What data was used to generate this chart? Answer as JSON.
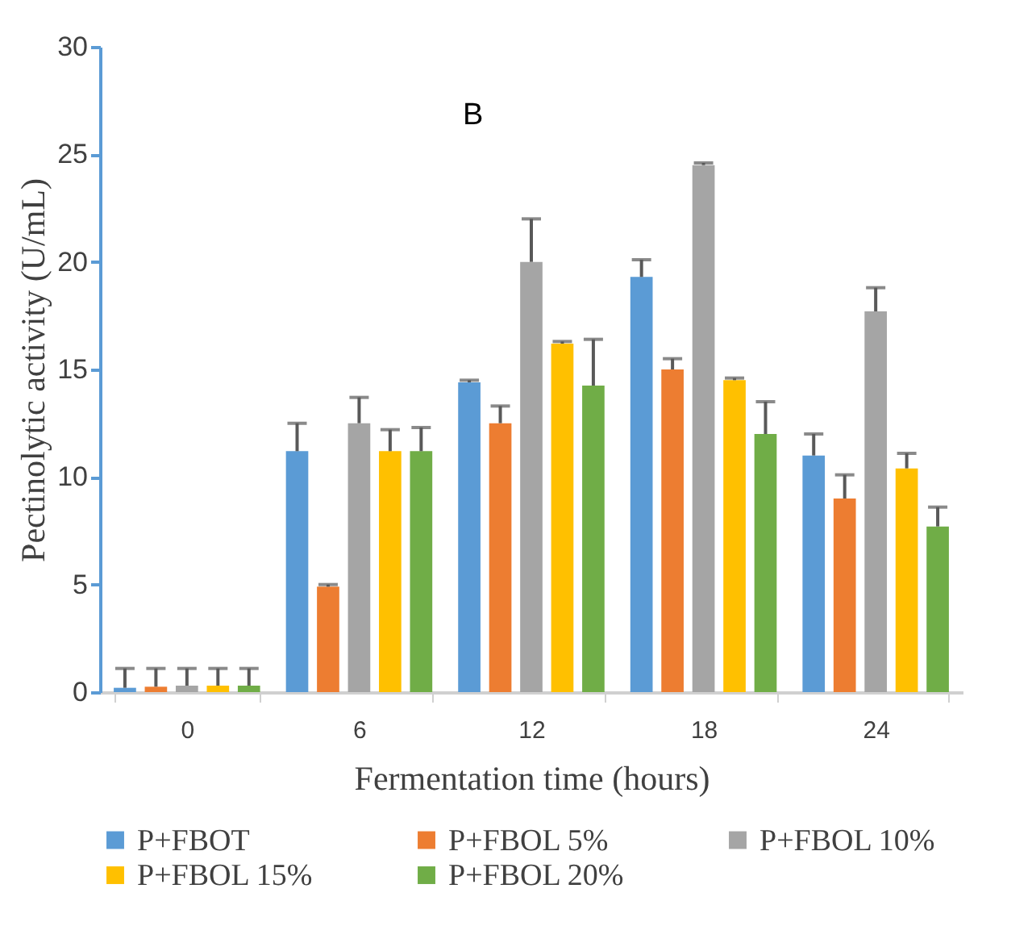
{
  "chart_data": {
    "type": "bar",
    "xlabel": "Fermentation time (hours)",
    "ylabel": "Pectinolytic activity (U/mL)",
    "annotations": [
      "B"
    ],
    "categories": [
      "0",
      "6",
      "12",
      "18",
      "24"
    ],
    "series": [
      {
        "name": "P+FBOT",
        "color": "#5b9bd5",
        "values": [
          0.2,
          11.2,
          14.4,
          19.3,
          11.0
        ],
        "errors": [
          [
            0.2,
            1.1
          ],
          [
            11.2,
            12.5
          ],
          [
            14.4,
            14.5
          ],
          [
            19.3,
            20.1
          ],
          [
            11.0,
            12.0
          ]
        ]
      },
      {
        "name": "P+FBOL 5%",
        "color": "#ed7d31",
        "values": [
          0.25,
          4.9,
          12.5,
          15.0,
          9.0
        ],
        "errors": [
          [
            0.25,
            1.1
          ],
          [
            4.9,
            5.0
          ],
          [
            12.5,
            13.3
          ],
          [
            15.0,
            15.5
          ],
          [
            9.0,
            10.1
          ]
        ]
      },
      {
        "name": "P+FBOL 10%",
        "color": "#a5a5a5",
        "values": [
          0.3,
          12.5,
          20.0,
          24.5,
          17.7
        ],
        "errors": [
          [
            0.3,
            1.1
          ],
          [
            12.5,
            13.7
          ],
          [
            20.0,
            22.0
          ],
          [
            24.5,
            24.6
          ],
          [
            17.7,
            18.8
          ]
        ]
      },
      {
        "name": "P+FBOL 15%",
        "color": "#ffc000",
        "values": [
          0.3,
          11.2,
          16.2,
          14.5,
          10.4
        ],
        "errors": [
          [
            0.3,
            1.1
          ],
          [
            11.2,
            12.2
          ],
          [
            16.2,
            16.3
          ],
          [
            14.5,
            14.6
          ],
          [
            10.4,
            11.1
          ]
        ]
      },
      {
        "name": "P+FBOL 20%",
        "color": "#70ad47",
        "values": [
          0.3,
          11.2,
          14.25,
          12.0,
          7.7
        ],
        "errors": [
          [
            0.3,
            1.1
          ],
          [
            11.2,
            12.3
          ],
          [
            14.25,
            16.4
          ],
          [
            12.0,
            13.5
          ],
          [
            7.7,
            8.6
          ]
        ]
      }
    ],
    "ylim": [
      0,
      30
    ],
    "yticks": [
      0,
      5,
      10,
      15,
      20,
      25,
      30
    ],
    "grid": false,
    "legend": "bottom"
  }
}
